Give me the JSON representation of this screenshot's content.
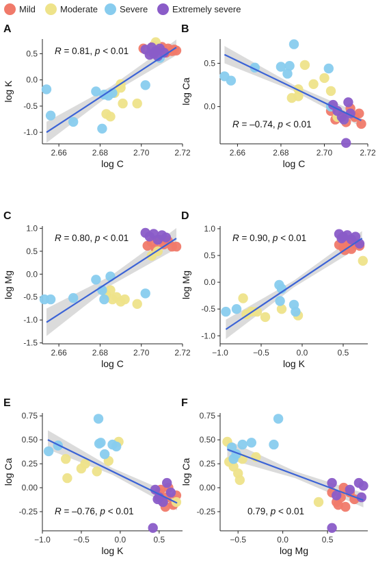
{
  "legend": {
    "items": [
      {
        "label": "Mild",
        "color": "#F07A6A"
      },
      {
        "label": "Moderate",
        "color": "#EEE38A"
      },
      {
        "label": "Severe",
        "color": "#88CCEE"
      },
      {
        "label": "Extremely severe",
        "color": "#8A5CC8"
      }
    ]
  },
  "colors": {
    "line": "#3B63D6",
    "band": "#BDBDBD",
    "axis": "#222222"
  },
  "chart_data": [
    {
      "panel": "A",
      "type": "scatter",
      "xlabel": "log C",
      "ylabel": "log K",
      "xlim": [
        2.652,
        2.72
      ],
      "ylim": [
        -1.22,
        0.78
      ],
      "xticks": [
        2.66,
        2.68,
        2.7,
        2.72
      ],
      "xtick_labels": [
        "2.66",
        "2.68",
        "2.70",
        "2.72"
      ],
      "yticks": [
        -1.0,
        -0.5,
        0.0,
        0.5
      ],
      "ytick_labels": [
        "-1.0",
        "-0.5",
        "0.0",
        "0.5"
      ],
      "annotation": {
        "prefix": "R = 0.81, ",
        "p": "p",
        "suffix": " < 0.01",
        "pos": "top-left"
      },
      "fit": {
        "x": [
          2.654,
          2.717
        ],
        "y": [
          -1.0,
          0.62
        ],
        "band": 0.2
      },
      "series": [
        {
          "name": "Mild",
          "x": [
            2.701,
            2.704,
            2.706,
            2.708,
            2.71,
            2.712,
            2.713,
            2.715,
            2.716,
            2.717
          ],
          "y": [
            0.6,
            0.55,
            0.65,
            0.57,
            0.63,
            0.52,
            0.6,
            0.55,
            0.58,
            0.56
          ]
        },
        {
          "name": "Moderate",
          "x": [
            2.687,
            2.69,
            2.683,
            2.685,
            2.691,
            2.698,
            2.69,
            2.704,
            2.707
          ],
          "y": [
            -0.25,
            -0.15,
            -0.65,
            -0.7,
            -0.45,
            -0.45,
            -0.08,
            0.58,
            0.72
          ]
        },
        {
          "name": "Severe",
          "x": [
            2.654,
            2.656,
            2.667,
            2.678,
            2.681,
            2.682,
            2.684,
            2.686,
            2.702,
            2.709
          ],
          "y": [
            -0.18,
            -0.68,
            -0.8,
            -0.22,
            -0.93,
            -0.28,
            -0.3,
            -0.25,
            -0.1,
            0.42
          ]
        },
        {
          "name": "Extremely severe",
          "x": [
            2.702,
            2.704,
            2.705,
            2.706,
            2.707,
            2.708,
            2.709,
            2.711
          ],
          "y": [
            0.58,
            0.48,
            0.62,
            0.5,
            0.55,
            0.45,
            0.6,
            0.52
          ]
        }
      ]
    },
    {
      "panel": "B",
      "type": "scatter",
      "xlabel": "log C",
      "ylabel": "log Ca",
      "xlim": [
        2.652,
        2.72
      ],
      "ylim": [
        -0.43,
        0.78
      ],
      "xticks": [
        2.66,
        2.68,
        2.7,
        2.72
      ],
      "xtick_labels": [
        "2.66",
        "2.68",
        "2.70",
        "2.72"
      ],
      "yticks": [
        0.0,
        0.5
      ],
      "ytick_labels": [
        "0.0",
        "0.5"
      ],
      "annotation": {
        "prefix": "R = –0.74, ",
        "p": "p",
        "suffix": " < 0.01",
        "pos": "bottom-left"
      },
      "fit": {
        "x": [
          2.654,
          2.717
        ],
        "y": [
          0.6,
          -0.16
        ],
        "band": 0.1
      },
      "series": [
        {
          "name": "Mild",
          "x": [
            2.703,
            2.705,
            2.708,
            2.71,
            2.712,
            2.714,
            2.716,
            2.717
          ],
          "y": [
            -0.05,
            -0.15,
            -0.1,
            -0.18,
            -0.02,
            -0.12,
            -0.08,
            -0.2
          ]
        },
        {
          "name": "Moderate",
          "x": [
            2.685,
            2.688,
            2.691,
            2.695,
            2.7,
            2.703,
            2.688,
            2.706,
            2.709
          ],
          "y": [
            0.1,
            0.12,
            0.48,
            0.26,
            0.33,
            0.18,
            0.2,
            -0.12,
            -0.15
          ]
        },
        {
          "name": "Severe",
          "x": [
            2.654,
            2.657,
            2.668,
            2.68,
            2.683,
            2.684,
            2.686,
            2.702,
            2.703
          ],
          "y": [
            0.35,
            0.3,
            0.45,
            0.46,
            0.38,
            0.47,
            0.72,
            0.44,
            0.0
          ]
        },
        {
          "name": "Extremely severe",
          "x": [
            2.704,
            2.706,
            2.708,
            2.71,
            2.711,
            2.712,
            2.709
          ],
          "y": [
            0.02,
            -0.05,
            -0.12,
            -0.42,
            0.05,
            -0.08,
            -0.15
          ]
        }
      ]
    },
    {
      "panel": "C",
      "type": "scatter",
      "xlabel": "log C",
      "ylabel": "log Mg",
      "xlim": [
        2.652,
        2.72
      ],
      "ylim": [
        -1.52,
        1.05
      ],
      "xticks": [
        2.66,
        2.68,
        2.7,
        2.72
      ],
      "xtick_labels": [
        "2.66",
        "2.68",
        "2.70",
        "2.72"
      ],
      "yticks": [
        -1.5,
        -1.0,
        -0.5,
        0.0,
        0.5,
        1.0
      ],
      "ytick_labels": [
        "-1.5",
        "-1.0",
        "-0.5",
        "0.0",
        "0.5",
        "1.0"
      ],
      "annotation": {
        "prefix": "R = 0.80, ",
        "p": "p",
        "suffix": " < 0.01",
        "pos": "top-left"
      },
      "fit": {
        "x": [
          2.654,
          2.717
        ],
        "y": [
          -1.05,
          0.78
        ],
        "band": 0.3
      },
      "series": [
        {
          "name": "Mild",
          "x": [
            2.703,
            2.705,
            2.707,
            2.709,
            2.711,
            2.713,
            2.715,
            2.717
          ],
          "y": [
            0.62,
            0.7,
            0.55,
            0.75,
            0.65,
            0.72,
            0.6,
            0.6
          ]
        },
        {
          "name": "Moderate",
          "x": [
            2.683,
            2.686,
            2.688,
            2.69,
            2.692,
            2.698,
            2.705,
            2.708,
            2.685
          ],
          "y": [
            -0.45,
            -0.55,
            -0.5,
            -0.6,
            -0.55,
            -0.65,
            0.4,
            0.5,
            -0.35
          ]
        },
        {
          "name": "Severe",
          "x": [
            2.653,
            2.656,
            2.667,
            2.678,
            2.682,
            2.685,
            2.702,
            2.681
          ],
          "y": [
            -0.55,
            -0.55,
            -0.52,
            -0.12,
            -0.55,
            -0.05,
            -0.42,
            -0.35
          ]
        },
        {
          "name": "Extremely severe",
          "x": [
            2.702,
            2.704,
            2.706,
            2.708,
            2.71,
            2.712
          ],
          "y": [
            0.9,
            0.82,
            0.88,
            0.75,
            0.85,
            0.8
          ]
        }
      ]
    },
    {
      "panel": "D",
      "type": "scatter",
      "xlabel": "log K",
      "ylabel": "log Mg",
      "xlim": [
        -1.0,
        0.8
      ],
      "ylim": [
        -1.15,
        1.05
      ],
      "xticks": [
        -1.0,
        -0.5,
        0.0,
        0.5
      ],
      "xtick_labels": [
        "−1.0",
        "−0.5",
        "0.0",
        "0.5"
      ],
      "yticks": [
        -1.0,
        -0.5,
        0.0,
        0.5,
        1.0
      ],
      "ytick_labels": [
        "-1.0",
        "-0.5",
        "0.0",
        "0.5",
        "1.0"
      ],
      "annotation": {
        "prefix": "R = 0.90, ",
        "p": "p",
        "suffix": " < 0.01",
        "pos": "top-left"
      },
      "fit": {
        "x": [
          -0.93,
          0.73
        ],
        "y": [
          -0.88,
          0.82
        ],
        "band": 0.18
      },
      "series": [
        {
          "name": "Mild",
          "x": [
            0.45,
            0.5,
            0.55,
            0.6,
            0.65,
            0.7,
            0.52,
            0.58
          ],
          "y": [
            0.7,
            0.65,
            0.75,
            0.62,
            0.72,
            0.68,
            0.6,
            0.78
          ]
        },
        {
          "name": "Moderate",
          "x": [
            -0.72,
            -0.68,
            -0.55,
            -0.45,
            -0.25,
            -0.05,
            0.74,
            -0.62
          ],
          "y": [
            -0.3,
            -0.6,
            -0.55,
            -0.65,
            -0.5,
            -0.62,
            0.4,
            -0.55
          ]
        },
        {
          "name": "Severe",
          "x": [
            -0.93,
            -0.8,
            -0.28,
            -0.25,
            -0.1,
            -0.08,
            -0.27
          ],
          "y": [
            -0.55,
            -0.5,
            -0.05,
            -0.12,
            -0.42,
            -0.55,
            -0.35
          ]
        },
        {
          "name": "Extremely severe",
          "x": [
            0.45,
            0.5,
            0.55,
            0.6,
            0.65,
            0.7,
            0.48
          ],
          "y": [
            0.9,
            0.85,
            0.88,
            0.8,
            0.85,
            0.72,
            0.82
          ]
        }
      ]
    },
    {
      "panel": "E",
      "type": "scatter",
      "xlabel": "log K",
      "ylabel": "log Ca",
      "xlim": [
        -1.0,
        0.8
      ],
      "ylim": [
        -0.45,
        0.78
      ],
      "xticks": [
        -1.0,
        -0.5,
        0.0,
        0.5
      ],
      "xtick_labels": [
        "−1.0",
        "−0.5",
        "0.0",
        "0.5"
      ],
      "yticks": [
        -0.25,
        0.0,
        0.25,
        0.5,
        0.75
      ],
      "ytick_labels": [
        "-0.25",
        "0.00",
        "0.25",
        "0.50",
        "0.75"
      ],
      "annotation": {
        "prefix": "R = –0.76, ",
        "p": "p",
        "suffix": " < 0.01",
        "pos": "bottom-left"
      },
      "fit": {
        "x": [
          -0.93,
          0.73
        ],
        "y": [
          0.5,
          -0.16
        ],
        "band": 0.1
      },
      "series": [
        {
          "name": "Mild",
          "x": [
            0.5,
            0.55,
            0.6,
            0.62,
            0.68,
            0.72,
            0.58,
            0.52
          ],
          "y": [
            -0.05,
            -0.15,
            -0.1,
            0.0,
            -0.18,
            -0.08,
            -0.2,
            -0.02
          ]
        },
        {
          "name": "Moderate",
          "x": [
            -0.7,
            -0.45,
            -0.5,
            -0.3,
            -0.15,
            -0.02,
            0.72,
            -0.68
          ],
          "y": [
            0.3,
            0.25,
            0.2,
            0.17,
            0.28,
            0.48,
            -0.15,
            0.1
          ]
        },
        {
          "name": "Severe",
          "x": [
            -0.92,
            -0.8,
            -0.28,
            -0.25,
            -0.2,
            -0.1,
            -0.05,
            -0.27
          ],
          "y": [
            0.38,
            0.44,
            0.72,
            0.47,
            0.35,
            0.45,
            0.43,
            0.46
          ]
        },
        {
          "name": "Extremely severe",
          "x": [
            0.45,
            0.5,
            0.55,
            0.6,
            0.65,
            0.48,
            0.42
          ],
          "y": [
            -0.02,
            -0.1,
            -0.15,
            0.05,
            -0.05,
            -0.12,
            -0.42
          ]
        }
      ]
    },
    {
      "panel": "F",
      "type": "scatter",
      "xlabel": "log Mg",
      "ylabel": "log Ca",
      "xlim": [
        -0.7,
        0.95
      ],
      "ylim": [
        -0.45,
        0.78
      ],
      "xticks": [
        -0.5,
        0.0,
        0.5
      ],
      "xtick_labels": [
        "−0.5",
        "0.0",
        "0.5"
      ],
      "yticks": [
        -0.25,
        0.0,
        0.25,
        0.5,
        0.75
      ],
      "ytick_labels": [
        "-0.25",
        "0.00",
        "0.25",
        "0.50",
        "0.75"
      ],
      "annotation": {
        "prefix": "0.79, ",
        "p": "p",
        "suffix": " < 0.01",
        "pos": "bottom-left"
      },
      "fit": {
        "x": [
          -0.62,
          0.9
        ],
        "y": [
          0.4,
          -0.13
        ],
        "band": 0.1
      },
      "series": [
        {
          "name": "Mild",
          "x": [
            0.55,
            0.6,
            0.65,
            0.7,
            0.75,
            0.8,
            0.62,
            0.68
          ],
          "y": [
            -0.05,
            -0.15,
            -0.1,
            -0.2,
            -0.05,
            -0.12,
            -0.18,
            0.0
          ]
        },
        {
          "name": "Moderate",
          "x": [
            -0.62,
            -0.55,
            -0.5,
            -0.48,
            -0.45,
            -0.3,
            0.4,
            -0.6
          ],
          "y": [
            0.48,
            0.22,
            0.15,
            0.08,
            0.3,
            0.32,
            -0.15,
            0.27
          ]
        },
        {
          "name": "Severe",
          "x": [
            -0.57,
            -0.52,
            -0.45,
            -0.35,
            -0.1,
            -0.05,
            -0.55
          ],
          "y": [
            0.42,
            0.35,
            0.45,
            0.47,
            0.45,
            0.72,
            0.3
          ]
        },
        {
          "name": "Extremely severe",
          "x": [
            0.55,
            0.6,
            0.75,
            0.85,
            0.88,
            0.9,
            0.55
          ],
          "y": [
            0.05,
            -0.08,
            -0.02,
            0.05,
            -0.1,
            0.02,
            -0.42
          ]
        }
      ]
    }
  ]
}
